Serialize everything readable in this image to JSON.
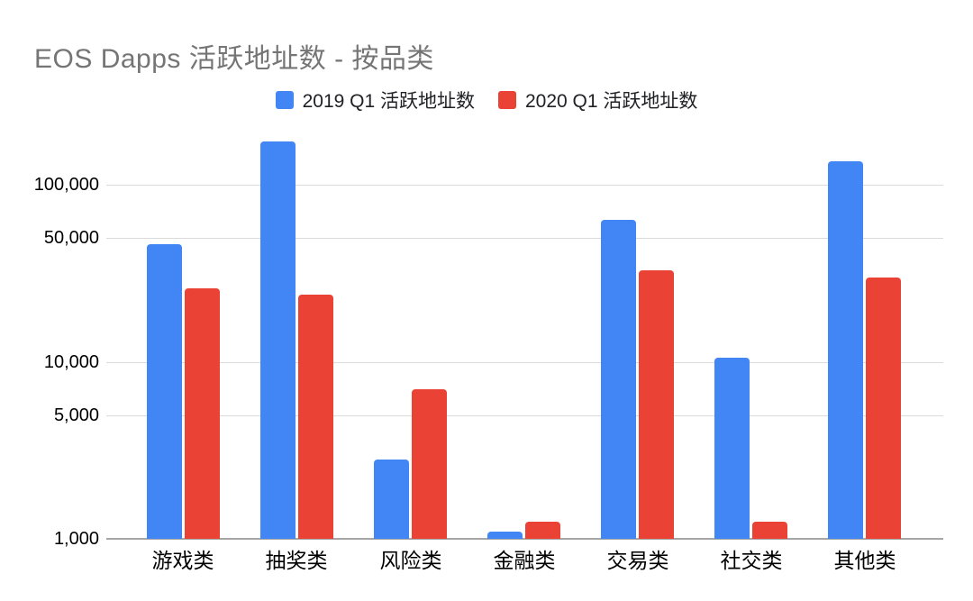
{
  "title": {
    "text": "EOS Dapps 活跃地址数 - 按品类",
    "color": "#757575"
  },
  "chart_data": {
    "type": "bar",
    "scale": "log",
    "title": "EOS Dapps 活跃地址数 - 按品类",
    "categories": [
      "游戏类",
      "抽奖类",
      "风险类",
      "金融类",
      "交易类",
      "社交类",
      "其他类"
    ],
    "series": [
      {
        "name": "2019 Q1 活跃地址数",
        "color": "#4285F4",
        "values": [
          46000,
          175000,
          2800,
          1100,
          63000,
          10500,
          135000
        ]
      },
      {
        "name": "2020 Q1 活跃地址数",
        "color": "#EA4335",
        "values": [
          26000,
          24000,
          7000,
          1250,
          33000,
          1250,
          30000
        ]
      }
    ],
    "y_axis": {
      "ticks": [
        1000,
        5000,
        10000,
        50000,
        100000
      ],
      "tick_labels": [
        "1,000",
        "5,000",
        "10,000",
        "50,000",
        "100,000"
      ],
      "ylim": [
        1000,
        200000
      ]
    },
    "xlabel": "",
    "ylabel": "",
    "legend_position": "top",
    "grid": true,
    "colors": {
      "gridline": "#dadada",
      "axis_line": "#a6a6a6",
      "axis_label": "#000000",
      "legend_text": "#202124",
      "background": "#ffffff"
    }
  }
}
